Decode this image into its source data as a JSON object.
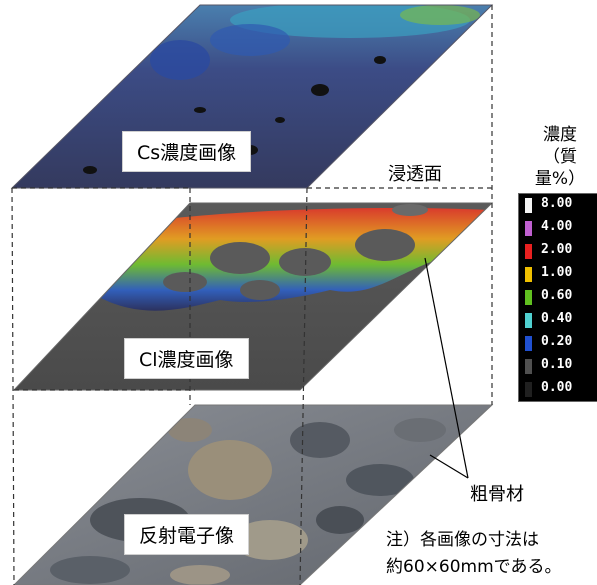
{
  "layers": {
    "cs": "Cs濃度画像",
    "cl": "Cl濃度画像",
    "bse": "反射電子像"
  },
  "labels": {
    "permeation_surface": "浸透面",
    "coarse_aggregate": "粗骨材"
  },
  "legend": {
    "title_line1": "濃度",
    "title_line2": "（質量%）",
    "entries": [
      {
        "value": "8.00",
        "color": "#f4f4f4"
      },
      {
        "value": "4.00",
        "color": "#c060d0"
      },
      {
        "value": "2.00",
        "color": "#e82020"
      },
      {
        "value": "1.00",
        "color": "#f0c000"
      },
      {
        "value": "0.60",
        "color": "#60c020"
      },
      {
        "value": "0.40",
        "color": "#50d0d0"
      },
      {
        "value": "0.20",
        "color": "#2050d0"
      },
      {
        "value": "0.10",
        "color": "#505050"
      },
      {
        "value": "0.00",
        "color": "#202020"
      }
    ]
  },
  "note": {
    "line1": "注）各画像の寸法は",
    "line2": "約60×60mmである。"
  },
  "colors": {
    "cs_base": "#3a3f6a",
    "cl_base": "#5a5a5a",
    "bse_base": "#7a7f85"
  }
}
